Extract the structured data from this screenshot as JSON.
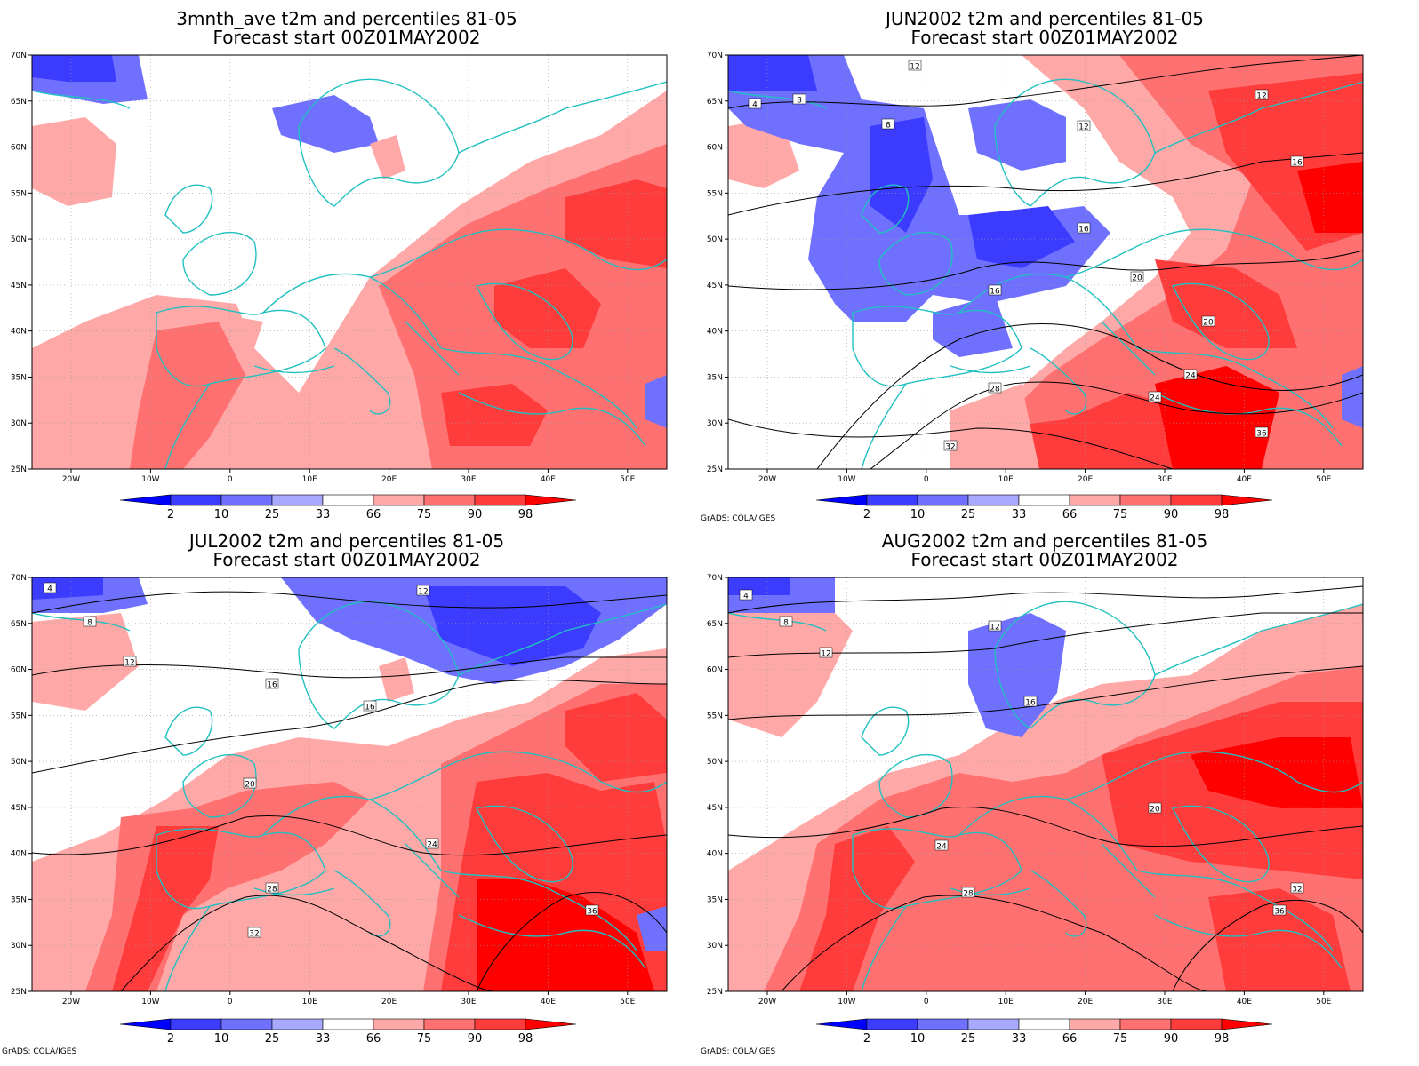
{
  "panels": [
    {
      "title1": "3mnth_ave t2m and percentiles 81-05",
      "title2": "Forecast start 00Z01MAY2002",
      "credit": ""
    },
    {
      "title1": "JUN2002 t2m and percentiles 81-05",
      "title2": "Forecast start 00Z01MAY2002",
      "credit": "GrADS: COLA/IGES"
    },
    {
      "title1": "JUL2002 t2m and percentiles 81-05",
      "title2": "Forecast start 00Z01MAY2002",
      "credit": "GrADS: COLA/IGES"
    },
    {
      "title1": "AUG2002 t2m and percentiles 81-05",
      "title2": "Forecast start 00Z01MAY2002",
      "credit": "GrADS: COLA/IGES"
    }
  ],
  "lat_labels": [
    "70N",
    "65N",
    "60N",
    "55N",
    "50N",
    "45N",
    "40N",
    "35N",
    "30N",
    "25N"
  ],
  "lon_labels": [
    "20W",
    "10W",
    "0",
    "10E",
    "20E",
    "30E",
    "40E",
    "50E"
  ],
  "colorbar": {
    "labels": [
      "2",
      "10",
      "25",
      "33",
      "66",
      "75",
      "90",
      "98"
    ],
    "colors": [
      "#0000ff",
      "#3c3cff",
      "#7070ff",
      "#a8a8ff",
      "#ffffff",
      "#ffa8a8",
      "#ff7070",
      "#ff3c3c",
      "#ff0000"
    ]
  },
  "contour_labels": {
    "p1": [],
    "p2": [
      "4",
      "8",
      "8",
      "12",
      "12",
      "12",
      "16",
      "16",
      "16",
      "20",
      "20",
      "24",
      "24",
      "28",
      "32",
      "36"
    ],
    "p3": [
      "4",
      "8",
      "12",
      "12",
      "16",
      "16",
      "20",
      "24",
      "28",
      "32",
      "36"
    ],
    "p4": [
      "4",
      "8",
      "12",
      "12",
      "16",
      "20",
      "24",
      "28",
      "32",
      "36"
    ]
  }
}
